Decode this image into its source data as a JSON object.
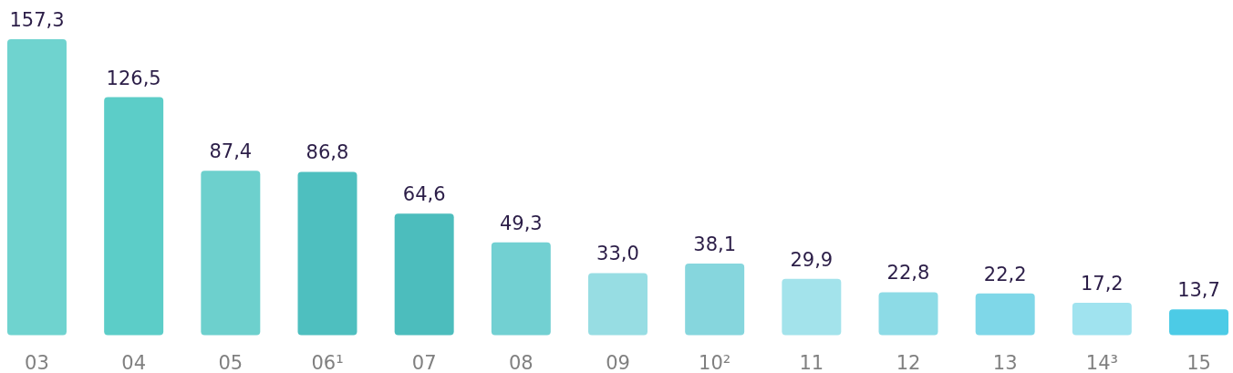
{
  "chart_data": {
    "type": "bar",
    "categories": [
      "03",
      "04",
      "05",
      "06¹",
      "07",
      "08",
      "09",
      "10²",
      "11",
      "12",
      "13",
      "14³",
      "15"
    ],
    "values": [
      157.3,
      126.5,
      87.4,
      86.8,
      64.6,
      49.3,
      33.0,
      38.1,
      29.9,
      22.8,
      22.2,
      17.2,
      13.7
    ],
    "value_labels": [
      "157,3",
      "126,5",
      "87,4",
      "86,8",
      "64,6",
      "49,3",
      "33,0",
      "38,1",
      "29,9",
      "22,8",
      "22,2",
      "17,2",
      "13,7"
    ],
    "colors": [
      "#6fd3cf",
      "#5ccdc8",
      "#6dd0cd",
      "#4ebfbf",
      "#4cbdbd",
      "#72d0d2",
      "#97dde3",
      "#86d6dd",
      "#a3e3eb",
      "#8ddbe6",
      "#7fd7e8",
      "#a0e3ef",
      "#4ccbe6"
    ]
  }
}
